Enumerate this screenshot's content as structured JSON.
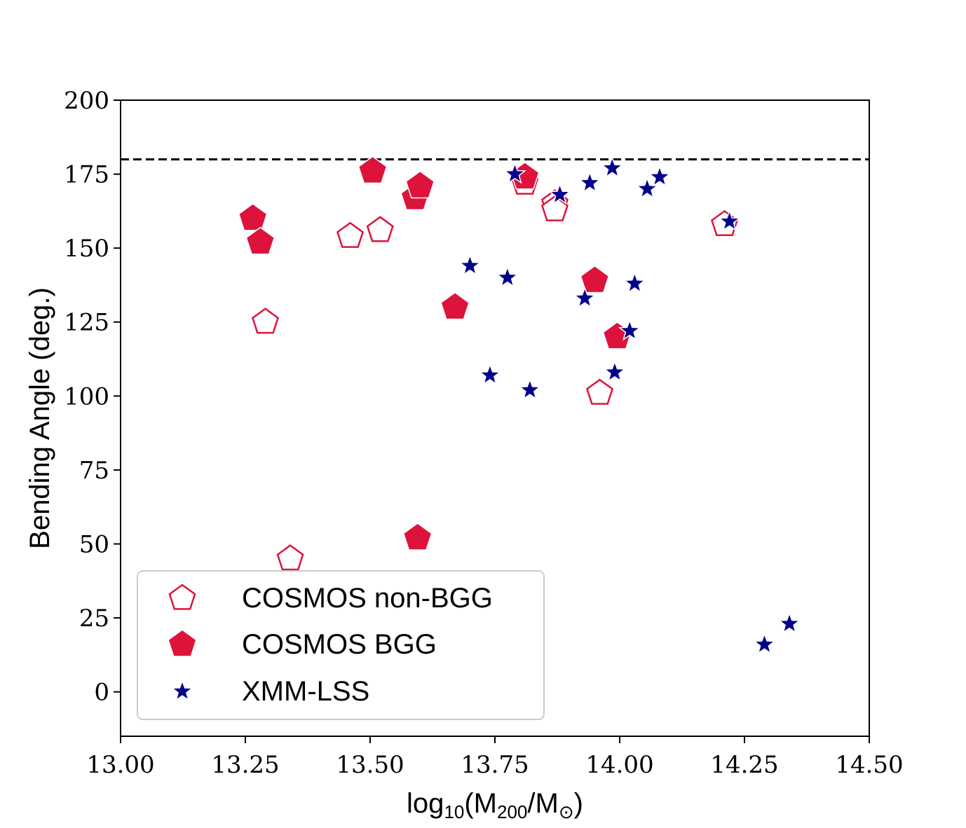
{
  "chart_data": {
    "type": "scatter",
    "title": "",
    "xlabel": {
      "prefix": "log",
      "sub1": "10",
      "mid1": "(M",
      "sub2": "200",
      "mid2": "/M",
      "sub3": "⊙",
      "suffix": ")"
    },
    "ylabel": "Bending Angle (deg.)",
    "xlim": [
      13.0,
      14.5
    ],
    "ylim": [
      -15,
      200
    ],
    "xticks": [
      "13.00",
      "13.25",
      "13.50",
      "13.75",
      "14.00",
      "14.25",
      "14.50"
    ],
    "yticks": [
      "0",
      "25",
      "50",
      "75",
      "100",
      "125",
      "150",
      "175",
      "200"
    ],
    "reference_line": {
      "y": 180,
      "style": "dashed",
      "color": "#000000"
    },
    "legend_position": "lower-left",
    "series": [
      {
        "name": "COSMOS non-BGG",
        "marker": "pentagon-open",
        "color": "#dc143c",
        "points": [
          [
            13.29,
            125
          ],
          [
            13.34,
            45
          ],
          [
            13.46,
            154
          ],
          [
            13.52,
            156
          ],
          [
            13.81,
            172
          ],
          [
            13.87,
            165
          ],
          [
            13.87,
            163
          ],
          [
            13.96,
            101
          ],
          [
            14.21,
            158
          ]
        ]
      },
      {
        "name": "COSMOS BGG",
        "marker": "pentagon-filled",
        "color": "#dc143c",
        "points": [
          [
            13.265,
            160
          ],
          [
            13.28,
            152
          ],
          [
            13.505,
            176
          ],
          [
            13.59,
            167
          ],
          [
            13.6,
            171
          ],
          [
            13.595,
            52
          ],
          [
            13.67,
            130
          ],
          [
            13.81,
            174
          ],
          [
            13.95,
            139
          ],
          [
            13.995,
            120
          ]
        ]
      },
      {
        "name": "XMM-LSS",
        "marker": "star",
        "color": "#00008b",
        "points": [
          [
            13.7,
            144
          ],
          [
            13.74,
            107
          ],
          [
            13.775,
            140
          ],
          [
            13.79,
            175
          ],
          [
            13.82,
            102
          ],
          [
            13.88,
            168
          ],
          [
            13.93,
            133
          ],
          [
            13.94,
            172
          ],
          [
            13.985,
            177
          ],
          [
            13.99,
            108
          ],
          [
            14.02,
            122
          ],
          [
            14.03,
            138
          ],
          [
            14.055,
            170
          ],
          [
            14.08,
            174
          ],
          [
            14.22,
            159
          ],
          [
            14.29,
            16
          ],
          [
            14.34,
            23
          ]
        ]
      }
    ]
  }
}
